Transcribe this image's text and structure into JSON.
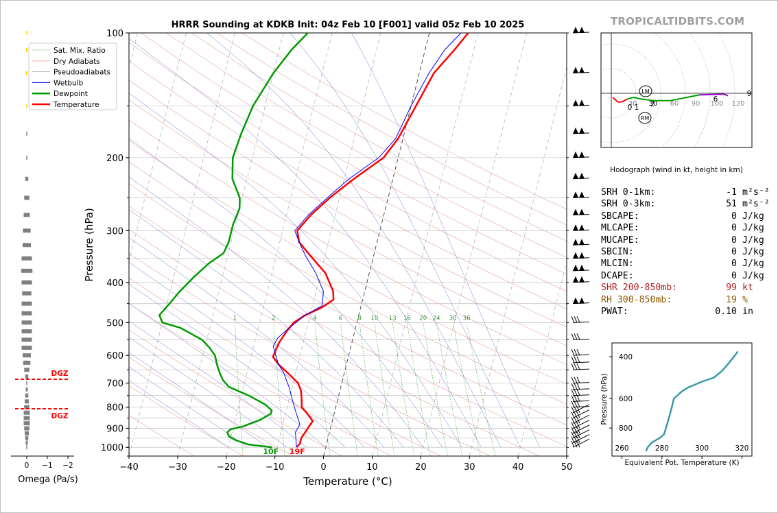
{
  "brand": "TROPICALTIDBITS.COM",
  "chart_data": [
    {
      "type": "line",
      "title": "HRRR Sounding at KDKB Init: 04z Feb 10 [F001] valid 05z Feb 10 2025",
      "xlabel": "Temperature (°C)",
      "ylabel": "Pressure (hPa)",
      "xlim": [
        -40,
        50
      ],
      "ylim": [
        1050,
        100
      ],
      "yscale": "log",
      "x_ticks": [
        "−40",
        "−30",
        "−20",
        "−10",
        "0",
        "10",
        "20",
        "30",
        "40",
        "50"
      ],
      "y_ticks": [
        "100",
        "200",
        "300",
        "400",
        "500",
        "600",
        "700",
        "800",
        "900",
        "1000"
      ],
      "legend": [
        "Sat. Mix. Ratio",
        "Dry Adiabats",
        "Pseudoadiabats",
        "Wetbulb",
        "Dewpoint",
        "Temperature"
      ],
      "legend_position": "top-left",
      "mixing_ratio_labels": [
        "1",
        "2",
        "4",
        "6",
        "8",
        "10",
        "13",
        "16",
        "20",
        "24",
        "30",
        "36"
      ],
      "surface_labels": {
        "dewpoint": "10F",
        "temperature": "19F"
      },
      "series": [
        {
          "name": "Temperature",
          "color": "#ff0000",
          "points": [
            [
              -6,
              1000
            ],
            [
              -5.5,
              980
            ],
            [
              -5.5,
              950
            ],
            [
              -5,
              920
            ],
            [
              -4.5,
              890
            ],
            [
              -4,
              865
            ],
            [
              -5.5,
              830
            ],
            [
              -7,
              800
            ],
            [
              -7.5,
              760
            ],
            [
              -8,
              730
            ],
            [
              -9,
              700
            ],
            [
              -11,
              670
            ],
            [
              -12.5,
              650
            ],
            [
              -14,
              630
            ],
            [
              -15.5,
              605
            ],
            [
              -15,
              560
            ],
            [
              -14,
              525
            ],
            [
              -13,
              500
            ],
            [
              -11,
              480
            ],
            [
              -8,
              460
            ],
            [
              -6,
              440
            ],
            [
              -6.5,
              420
            ],
            [
              -9,
              380
            ],
            [
              -13,
              345
            ],
            [
              -16,
              320
            ],
            [
              -17,
              300
            ],
            [
              -15,
              275
            ],
            [
              -12,
              250
            ],
            [
              -8,
              225
            ],
            [
              -3,
              200
            ],
            [
              -1,
              180
            ],
            [
              1,
              150
            ],
            [
              3,
              125
            ],
            [
              6,
              110
            ],
            [
              8,
              100
            ]
          ]
        },
        {
          "name": "Dewpoint",
          "color": "#009a00",
          "points": [
            [
              -11,
              1000
            ],
            [
              -16,
              985
            ],
            [
              -19,
              960
            ],
            [
              -20.5,
              940
            ],
            [
              -21,
              920
            ],
            [
              -20.5,
              905
            ],
            [
              -18,
              890
            ],
            [
              -15,
              860
            ],
            [
              -13,
              830
            ],
            [
              -13,
              815
            ],
            [
              -14.5,
              790
            ],
            [
              -18.5,
              750
            ],
            [
              -23,
              715
            ],
            [
              -24.5,
              690
            ],
            [
              -25.5,
              665
            ],
            [
              -26.5,
              635
            ],
            [
              -27.5,
              600
            ],
            [
              -29,
              575
            ],
            [
              -31,
              550
            ],
            [
              -36,
              515
            ],
            [
              -40,
              500
            ],
            [
              -41,
              480
            ],
            [
              -39.5,
              450
            ],
            [
              -38,
              420
            ],
            [
              -36,
              390
            ],
            [
              -33.5,
              360
            ],
            [
              -31,
              340
            ],
            [
              -30.5,
              320
            ],
            [
              -30.5,
              290
            ],
            [
              -30,
              265
            ],
            [
              -30.5,
              250
            ],
            [
              -33,
              225
            ],
            [
              -34,
              200
            ],
            [
              -33.5,
              175
            ],
            [
              -32.5,
              150
            ],
            [
              -30,
              125
            ],
            [
              -27.5,
              110
            ],
            [
              -25,
              100
            ]
          ]
        },
        {
          "name": "Wetbulb",
          "color": "#0000ff",
          "points": [
            [
              -6,
              1000
            ],
            [
              -6.5,
              960
            ],
            [
              -7,
              920
            ],
            [
              -6.5,
              880
            ],
            [
              -7.5,
              840
            ],
            [
              -8.5,
              800
            ],
            [
              -9.5,
              760
            ],
            [
              -10.5,
              720
            ],
            [
              -11.5,
              690
            ],
            [
              -12.5,
              660
            ],
            [
              -14,
              630
            ],
            [
              -15,
              600
            ],
            [
              -16,
              570
            ],
            [
              -15.5,
              545
            ],
            [
              -14,
              520
            ],
            [
              -11,
              480
            ],
            [
              -8,
              455
            ],
            [
              -8.5,
              420
            ],
            [
              -11,
              380
            ],
            [
              -14,
              345
            ],
            [
              -16,
              320
            ],
            [
              -17.5,
              300
            ],
            [
              -15.5,
              275
            ],
            [
              -12.5,
              250
            ],
            [
              -9,
              225
            ],
            [
              -4,
              200
            ],
            [
              -1.5,
              180
            ],
            [
              0,
              150
            ],
            [
              2,
              125
            ],
            [
              4,
              110
            ],
            [
              6.5,
              100
            ]
          ]
        }
      ]
    },
    {
      "type": "bar",
      "xlabel": "Omega (Pa/s)",
      "x_ticks": [
        "0",
        "−1",
        "−2"
      ],
      "annotations": [
        "DGZ",
        "DGZ"
      ],
      "pressure": [
        100,
        110,
        125,
        150,
        175,
        200,
        225,
        250,
        275,
        300,
        325,
        350,
        375,
        400,
        425,
        450,
        475,
        500,
        525,
        550,
        575,
        600,
        625,
        650,
        675,
        700,
        725,
        750,
        775,
        800,
        825,
        850,
        875,
        900,
        925,
        950,
        975,
        1000
      ],
      "values": [
        -0.02,
        -0.03,
        -0.03,
        -0.02,
        -0.01,
        0.02,
        0.06,
        0.1,
        0.12,
        0.15,
        0.16,
        0.2,
        0.22,
        0.2,
        0.18,
        0.2,
        0.2,
        0.2,
        0.2,
        0.2,
        0.2,
        0.16,
        0.14,
        0.1,
        0.06,
        0.02,
        0.04,
        0.06,
        0.08,
        0.1,
        0.12,
        0.12,
        0.12,
        0.1,
        0.08,
        0.06,
        0.04,
        0.02
      ]
    },
    {
      "type": "line",
      "title": "Hodograph (wind in kt, height in km)",
      "ring_labels": [
        "30",
        "30",
        "60",
        "90",
        "100",
        "120"
      ],
      "height_labels": [
        "0",
        "1",
        "2",
        "6",
        "9"
      ],
      "storm_motion_labels": [
        "LM",
        "RM"
      ],
      "points": [
        [
          -5,
          0
        ],
        [
          2,
          -6
        ],
        [
          7,
          -5
        ],
        [
          13,
          -2
        ],
        [
          20,
          0
        ],
        [
          30,
          -2
        ],
        [
          45,
          -4
        ],
        [
          65,
          -4
        ],
        [
          100,
          3
        ],
        [
          130,
          4
        ],
        [
          135,
          2
        ]
      ]
    },
    {
      "type": "line",
      "xlabel": "Equivalent Pot. Temperature (K)",
      "ylabel": "Pressure (hPa)",
      "xlim": [
        255,
        325
      ],
      "x_ticks": [
        "260",
        "280",
        "300",
        "320"
      ],
      "y_ticks": [
        "400",
        "600",
        "800"
      ],
      "color": "#3a9aa8",
      "points": [
        [
          272,
          1000
        ],
        [
          273,
          960
        ],
        [
          275,
          920
        ],
        [
          279,
          880
        ],
        [
          281,
          850
        ],
        [
          282,
          800
        ],
        [
          283,
          750
        ],
        [
          284,
          700
        ],
        [
          285,
          650
        ],
        [
          286,
          600
        ],
        [
          287,
          590
        ],
        [
          290,
          560
        ],
        [
          293,
          540
        ],
        [
          300,
          510
        ],
        [
          306,
          490
        ],
        [
          310,
          460
        ],
        [
          313,
          430
        ],
        [
          316,
          400
        ],
        [
          318,
          380
        ]
      ]
    }
  ],
  "stats": [
    {
      "label": "SRH 0-1km:",
      "value": "-1",
      "unit": "m²s⁻²",
      "cls": ""
    },
    {
      "label": "SRH 0-3km:",
      "value": "51",
      "unit": "m²s⁻²",
      "cls": ""
    },
    {
      "label": "SBCAPE:",
      "value": "0",
      "unit": "J/kg",
      "cls": ""
    },
    {
      "label": "MLCAPE:",
      "value": "0",
      "unit": "J/kg",
      "cls": ""
    },
    {
      "label": "MUCAPE:",
      "value": "0",
      "unit": "J/kg",
      "cls": ""
    },
    {
      "label": "SBCIN:",
      "value": "0",
      "unit": "J/kg",
      "cls": ""
    },
    {
      "label": "MLCIN:",
      "value": "0",
      "unit": "J/kg",
      "cls": ""
    },
    {
      "label": "DCAPE:",
      "value": "0",
      "unit": "J/kg",
      "cls": ""
    },
    {
      "label": "SHR 200-850mb:",
      "value": "99",
      "unit": "kt",
      "cls": "shr"
    },
    {
      "label": "RH 300-850mb:",
      "value": "19",
      "unit": "%",
      "cls": "rh"
    },
    {
      "label": "PWAT:",
      "value": "0.10",
      "unit": "in",
      "cls": ""
    }
  ]
}
